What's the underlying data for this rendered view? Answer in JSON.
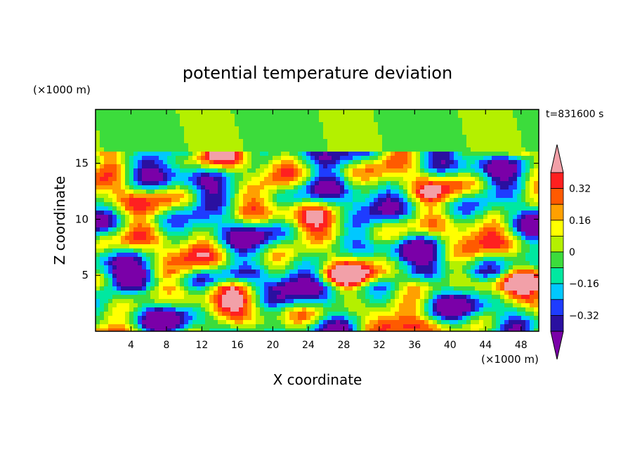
{
  "chart_data": {
    "type": "heatmap",
    "title": "potential temperature deviation",
    "xlabel": "X coordinate",
    "ylabel": "Z coordinate",
    "x_unit": "(×1000 m)",
    "y_unit": "(×1000 m)",
    "time_label": "t=831600 s",
    "xlim": [
      0,
      50
    ],
    "ylim": [
      0,
      19.8
    ],
    "x_ticks": [
      "4",
      "8",
      "12",
      "16",
      "20",
      "24",
      "28",
      "32",
      "36",
      "40",
      "44",
      "48"
    ],
    "y_ticks": [
      "5",
      "10",
      "15"
    ],
    "colorbar_labels": [
      "0.32",
      "0.16",
      "0",
      "−0.16",
      "−0.32"
    ],
    "colorbar_levels": [
      -0.4,
      -0.32,
      -0.24,
      -0.16,
      -0.08,
      0,
      0.08,
      0.16,
      0.24,
      0.32,
      0.4
    ],
    "colors": [
      "#7a00a8",
      "#2a10a0",
      "#1e3cff",
      "#00c8ff",
      "#00e8a0",
      "#3cdc3c",
      "#b4f000",
      "#ffff00",
      "#ffa000",
      "#ff5a00",
      "#ff2020",
      "#f2a0a8"
    ]
  }
}
